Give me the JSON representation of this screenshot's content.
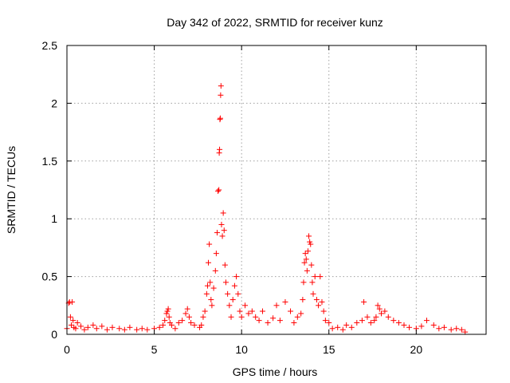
{
  "chart_data": {
    "type": "scatter",
    "title": "Day 342 of 2022, SRMTID for receiver kunz",
    "xlabel": "GPS time / hours",
    "ylabel": "SRMTID / TECUs",
    "xlim": [
      0,
      24
    ],
    "ylim": [
      0,
      2.5
    ],
    "xticks": [
      0,
      5,
      10,
      15,
      20
    ],
    "yticks": [
      0,
      0.5,
      1,
      1.5,
      2,
      2.5
    ],
    "xtick_labels": [
      "0",
      "5",
      "10",
      "15",
      "20"
    ],
    "ytick_labels": [
      "0",
      "0.5",
      "1",
      "1.5",
      "2",
      "2.5"
    ],
    "grid": true,
    "marker": "+",
    "series": [
      {
        "name": "SRMTID",
        "color": "#ff0000",
        "x": [
          0.0,
          0.1,
          0.15,
          0.2,
          0.25,
          0.3,
          0.35,
          0.4,
          0.5,
          0.6,
          0.8,
          1.0,
          1.2,
          1.5,
          1.7,
          2.0,
          2.3,
          2.6,
          3.0,
          3.3,
          3.6,
          4.0,
          4.3,
          4.6,
          5.0,
          5.3,
          5.5,
          5.6,
          5.7,
          5.75,
          5.8,
          5.85,
          5.9,
          6.0,
          6.2,
          6.4,
          6.6,
          6.8,
          6.9,
          7.0,
          7.1,
          7.3,
          7.6,
          7.7,
          7.8,
          7.9,
          8.0,
          8.05,
          8.1,
          8.15,
          8.2,
          8.25,
          8.3,
          8.4,
          8.5,
          8.55,
          8.6,
          8.65,
          8.7,
          8.72,
          8.74,
          8.76,
          8.78,
          8.8,
          8.82,
          8.85,
          8.9,
          8.95,
          9.0,
          9.05,
          9.1,
          9.2,
          9.3,
          9.4,
          9.5,
          9.6,
          9.7,
          9.8,
          9.9,
          10.0,
          10.2,
          10.4,
          10.6,
          10.8,
          11.0,
          11.2,
          11.5,
          11.8,
          12.0,
          12.2,
          12.5,
          12.8,
          13.0,
          13.2,
          13.4,
          13.5,
          13.55,
          13.6,
          13.65,
          13.7,
          13.75,
          13.8,
          13.85,
          13.9,
          13.95,
          14.0,
          14.05,
          14.1,
          14.2,
          14.3,
          14.4,
          14.5,
          14.6,
          14.7,
          14.8,
          15.0,
          15.2,
          15.5,
          15.8,
          16.0,
          16.3,
          16.6,
          16.9,
          17.0,
          17.2,
          17.4,
          17.6,
          17.7,
          17.8,
          17.9,
          18.0,
          18.2,
          18.4,
          18.7,
          19.0,
          19.3,
          19.6,
          20.0,
          20.3,
          20.6,
          21.0,
          21.3,
          21.6,
          22.0,
          22.3,
          22.6,
          22.8
        ],
        "y": [
          0.05,
          0.27,
          0.28,
          0.15,
          0.08,
          0.28,
          0.12,
          0.06,
          0.05,
          0.1,
          0.07,
          0.04,
          0.06,
          0.08,
          0.05,
          0.07,
          0.04,
          0.06,
          0.05,
          0.04,
          0.06,
          0.04,
          0.05,
          0.04,
          0.05,
          0.06,
          0.08,
          0.12,
          0.18,
          0.2,
          0.22,
          0.15,
          0.1,
          0.08,
          0.05,
          0.1,
          0.12,
          0.18,
          0.22,
          0.15,
          0.1,
          0.08,
          0.06,
          0.08,
          0.15,
          0.2,
          0.35,
          0.42,
          0.62,
          0.78,
          0.45,
          0.3,
          0.25,
          0.4,
          0.55,
          0.7,
          0.88,
          1.24,
          1.25,
          1.57,
          1.6,
          1.86,
          1.87,
          2.07,
          2.15,
          0.95,
          0.85,
          1.05,
          0.9,
          0.6,
          0.45,
          0.35,
          0.25,
          0.15,
          0.3,
          0.42,
          0.5,
          0.35,
          0.2,
          0.15,
          0.25,
          0.18,
          0.2,
          0.15,
          0.12,
          0.2,
          0.1,
          0.14,
          0.25,
          0.12,
          0.28,
          0.2,
          0.1,
          0.15,
          0.18,
          0.3,
          0.45,
          0.62,
          0.7,
          0.65,
          0.55,
          0.72,
          0.85,
          0.8,
          0.78,
          0.6,
          0.45,
          0.35,
          0.5,
          0.3,
          0.25,
          0.5,
          0.28,
          0.2,
          0.12,
          0.1,
          0.05,
          0.06,
          0.04,
          0.08,
          0.06,
          0.1,
          0.12,
          0.28,
          0.15,
          0.1,
          0.12,
          0.15,
          0.25,
          0.22,
          0.18,
          0.2,
          0.15,
          0.12,
          0.1,
          0.08,
          0.06,
          0.05,
          0.07,
          0.12,
          0.08,
          0.05,
          0.06,
          0.04,
          0.05,
          0.04,
          0.02
        ]
      }
    ]
  }
}
